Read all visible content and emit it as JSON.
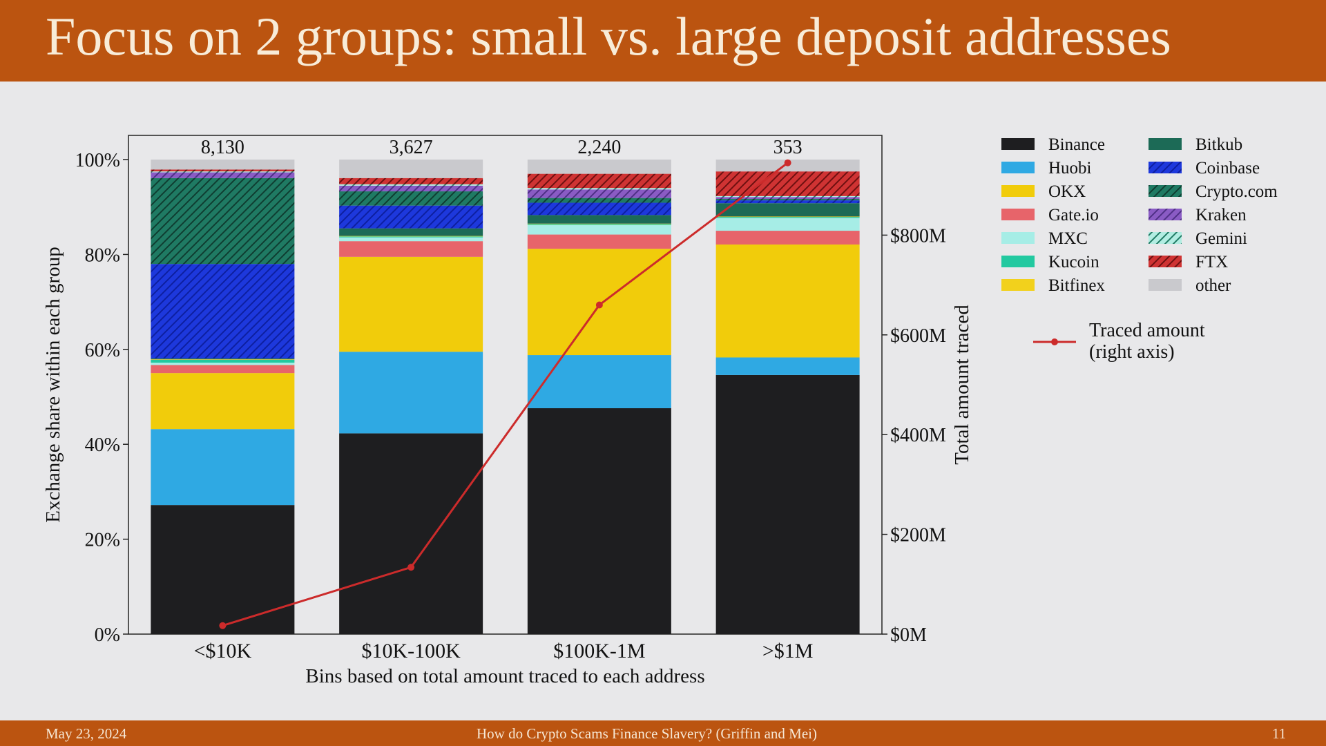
{
  "slide": {
    "title": "Focus on 2 groups: small vs. large deposit addresses",
    "footer_date": "May 23, 2024",
    "footer_title": "How do Crypto Scams Finance Slavery? (Griffin and Mei)",
    "page_number": "11"
  },
  "colors": {
    "header_bg": "#bb5410",
    "Binance": "#1e1e20",
    "Huobi": "#2fa9e3",
    "OKX": "#f1cc0b",
    "Gate.io": "#e7646a",
    "MXC": "#a6ede6",
    "Kucoin": "#22c9a0",
    "Bitfinex": "#f2d11c",
    "Bitkub": "#1c6a56",
    "Coinbase": "#1d38dc",
    "Crypto.com": "#1f7a63",
    "Kraken": "#8a5bc4",
    "Gemini": "#b2ede2",
    "FTX": "#cf3333",
    "other": "#c9c9cd",
    "line": "#cc2b2b"
  },
  "chart_data": {
    "type": "bar",
    "stacked": true,
    "categories": [
      "<$10K",
      "$10K-100K",
      "$100K-1M",
      ">$1M"
    ],
    "bar_counts": [
      "8,130",
      "3,627",
      "2,240",
      "353"
    ],
    "xlabel": "Bins based on total amount traced to each address",
    "ylabel": "Exchange share within each group",
    "ylabel_right": "Total amount traced",
    "ylim": [
      0,
      100
    ],
    "yticks": [
      "0%",
      "20%",
      "40%",
      "60%",
      "80%",
      "100%"
    ],
    "ylim_right": [
      0,
      1000
    ],
    "yticks_right": [
      "$0M",
      "$200M",
      "$400M",
      "$600M",
      "$800M"
    ],
    "yticks_right_values": [
      0,
      200,
      400,
      600,
      800
    ],
    "legend_location": "right, outside plot",
    "series": [
      {
        "name": "Binance",
        "values": [
          27.2,
          42.3,
          47.6,
          54.6
        ]
      },
      {
        "name": "Huobi",
        "values": [
          16.0,
          17.2,
          11.2,
          3.7
        ]
      },
      {
        "name": "OKX",
        "values": [
          11.8,
          20.0,
          22.4,
          23.8
        ]
      },
      {
        "name": "Gate.io",
        "values": [
          1.7,
          3.3,
          3.0,
          2.9
        ]
      },
      {
        "name": "MXC",
        "values": [
          0.5,
          0.8,
          2.0,
          2.7
        ]
      },
      {
        "name": "Kucoin",
        "values": [
          0.6,
          0.2,
          0.2,
          0.2
        ]
      },
      {
        "name": "Bitfinex",
        "values": [
          0.1,
          0.1,
          0.1,
          0.1
        ]
      },
      {
        "name": "Bitkub",
        "values": [
          0.2,
          1.6,
          1.8,
          2.8
        ]
      },
      {
        "name": "Coinbase",
        "values": [
          19.9,
          4.8,
          2.6,
          0.6
        ]
      },
      {
        "name": "Crypto.com",
        "values": [
          18.1,
          3.0,
          1.0,
          0.3
        ]
      },
      {
        "name": "Kraken",
        "values": [
          1.2,
          1.2,
          1.8,
          0.4
        ]
      },
      {
        "name": "Gemini",
        "values": [
          0.2,
          0.3,
          0.3,
          0.2
        ]
      },
      {
        "name": "FTX",
        "values": [
          0.4,
          1.3,
          3.0,
          5.2
        ]
      },
      {
        "name": "other",
        "values": [
          2.1,
          3.9,
          3.0,
          2.5
        ]
      }
    ],
    "line": {
      "name": "Traced amount\n(right axis)",
      "values": [
        17,
        134,
        660,
        945
      ]
    }
  }
}
